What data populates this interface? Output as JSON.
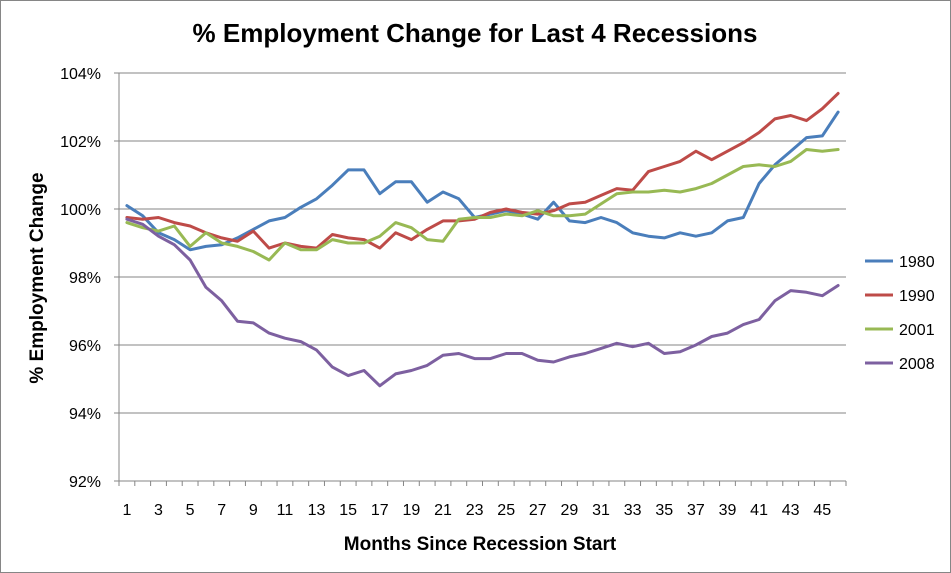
{
  "chart_data": {
    "type": "line",
    "title": "% Employment Change for Last 4 Recessions",
    "xlabel": "Months Since Recession Start",
    "ylabel": "% Employment Change",
    "x": [
      1,
      2,
      3,
      4,
      5,
      6,
      7,
      8,
      9,
      10,
      11,
      12,
      13,
      14,
      15,
      16,
      17,
      18,
      19,
      20,
      21,
      22,
      23,
      24,
      25,
      26,
      27,
      28,
      29,
      30,
      31,
      32,
      33,
      34,
      35,
      36,
      37,
      38,
      39,
      40,
      41,
      42,
      43,
      44,
      45,
      46
    ],
    "x_tick_labels": [
      "1",
      "3",
      "5",
      "7",
      "9",
      "11",
      "13",
      "15",
      "17",
      "19",
      "21",
      "23",
      "25",
      "27",
      "29",
      "31",
      "33",
      "35",
      "37",
      "39",
      "41",
      "43",
      "45"
    ],
    "ylim": [
      92,
      104
    ],
    "y_ticks": [
      92,
      94,
      96,
      98,
      100,
      102,
      104
    ],
    "y_tick_labels": [
      "92%",
      "94%",
      "96%",
      "98%",
      "100%",
      "102%",
      "104%"
    ],
    "grid": true,
    "legend_position": "right",
    "series": [
      {
        "name": "1980",
        "color": "#4a7ebb",
        "values": [
          100.1,
          99.8,
          99.3,
          99.1,
          98.8,
          98.9,
          98.95,
          99.15,
          99.4,
          99.65,
          99.75,
          100.05,
          100.3,
          100.7,
          101.15,
          101.15,
          100.45,
          100.8,
          100.8,
          100.2,
          100.5,
          100.3,
          99.75,
          99.85,
          99.95,
          99.85,
          99.7,
          100.2,
          99.65,
          99.6,
          99.75,
          99.6,
          99.3,
          99.2,
          99.15,
          99.3,
          99.2,
          99.3,
          99.65,
          99.75,
          100.75,
          101.3,
          101.7,
          102.1,
          102.15,
          102.85
        ]
      },
      {
        "name": "1990",
        "color": "#be4b48",
        "values": [
          99.75,
          99.7,
          99.75,
          99.6,
          99.5,
          99.3,
          99.15,
          99.05,
          99.35,
          98.85,
          99.0,
          98.9,
          98.85,
          99.25,
          99.15,
          99.1,
          98.85,
          99.3,
          99.1,
          99.4,
          99.65,
          99.65,
          99.7,
          99.9,
          100.0,
          99.9,
          99.85,
          99.95,
          100.15,
          100.2,
          100.4,
          100.6,
          100.55,
          101.1,
          101.25,
          101.4,
          101.7,
          101.45,
          101.7,
          101.95,
          102.25,
          102.65,
          102.75,
          102.6,
          102.95,
          103.4
        ]
      },
      {
        "name": "2001",
        "color": "#98b954",
        "values": [
          99.6,
          99.45,
          99.35,
          99.5,
          98.9,
          99.3,
          99.0,
          98.9,
          98.75,
          98.5,
          99.0,
          98.8,
          98.8,
          99.1,
          99.0,
          99.0,
          99.2,
          99.6,
          99.45,
          99.1,
          99.05,
          99.7,
          99.75,
          99.75,
          99.85,
          99.8,
          99.95,
          99.8,
          99.8,
          99.85,
          100.15,
          100.45,
          100.5,
          100.5,
          100.55,
          100.5,
          100.6,
          100.75,
          101.0,
          101.25,
          101.3,
          101.25,
          101.4,
          101.75,
          101.7,
          101.75
        ]
      },
      {
        "name": "2008",
        "color": "#7d60a0",
        "values": [
          99.7,
          99.55,
          99.2,
          98.95,
          98.5,
          97.7,
          97.3,
          96.7,
          96.65,
          96.35,
          96.2,
          96.1,
          95.85,
          95.35,
          95.1,
          95.25,
          94.8,
          95.15,
          95.25,
          95.4,
          95.7,
          95.75,
          95.6,
          95.6,
          95.75,
          95.75,
          95.55,
          95.5,
          95.65,
          95.75,
          95.9,
          96.05,
          95.95,
          96.05,
          95.75,
          95.8,
          96.0,
          96.25,
          96.35,
          96.6,
          96.75,
          97.3,
          97.6,
          97.55,
          97.45,
          97.75
        ]
      }
    ]
  }
}
